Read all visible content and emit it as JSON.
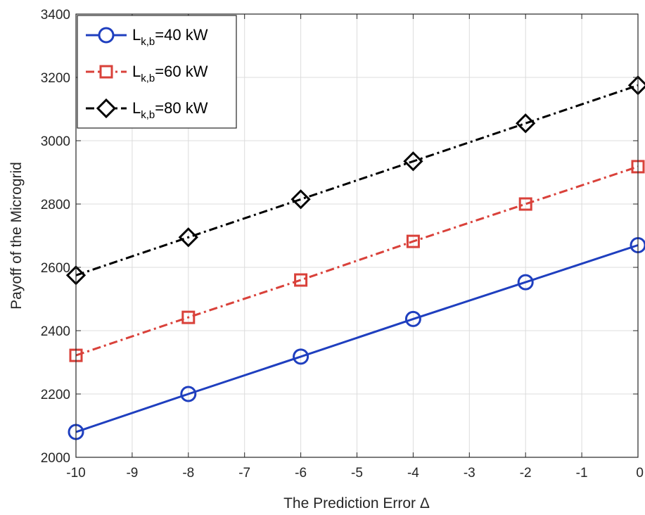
{
  "chart_data": {
    "type": "line",
    "xlabel": "The Prediction Error Δ",
    "ylabel": "Payoff of the Microgrid",
    "xlim": [
      -10,
      0
    ],
    "ylim": [
      2000,
      3400
    ],
    "xticks": [
      -10,
      -9,
      -8,
      -7,
      -6,
      -5,
      -4,
      -3,
      -2,
      -1,
      0
    ],
    "yticks": [
      2000,
      2200,
      2400,
      2600,
      2800,
      3000,
      3200,
      3400
    ],
    "grid": true,
    "legend_position": "top-left",
    "x": [
      -10,
      -8,
      -6,
      -4,
      -2,
      0
    ],
    "series": [
      {
        "name": "L",
        "name_sub": "k,b",
        "name_suffix": "=40 kW",
        "color": "#1f3fbf",
        "line_style": "solid",
        "marker": "circle",
        "values": [
          2080,
          2200,
          2318,
          2437,
          2553,
          2670
        ]
      },
      {
        "name": "L",
        "name_sub": "k,b",
        "name_suffix": "=60 kW",
        "color": "#d9413a",
        "line_style": "dash-dot",
        "marker": "square",
        "values": [
          2322,
          2442,
          2560,
          2682,
          2800,
          2918
        ]
      },
      {
        "name": "L",
        "name_sub": "k,b",
        "name_suffix": "=80 kW",
        "color": "#000000",
        "line_style": "dash-dot",
        "marker": "diamond",
        "values": [
          2575,
          2695,
          2815,
          2935,
          3055,
          3175
        ]
      }
    ]
  }
}
